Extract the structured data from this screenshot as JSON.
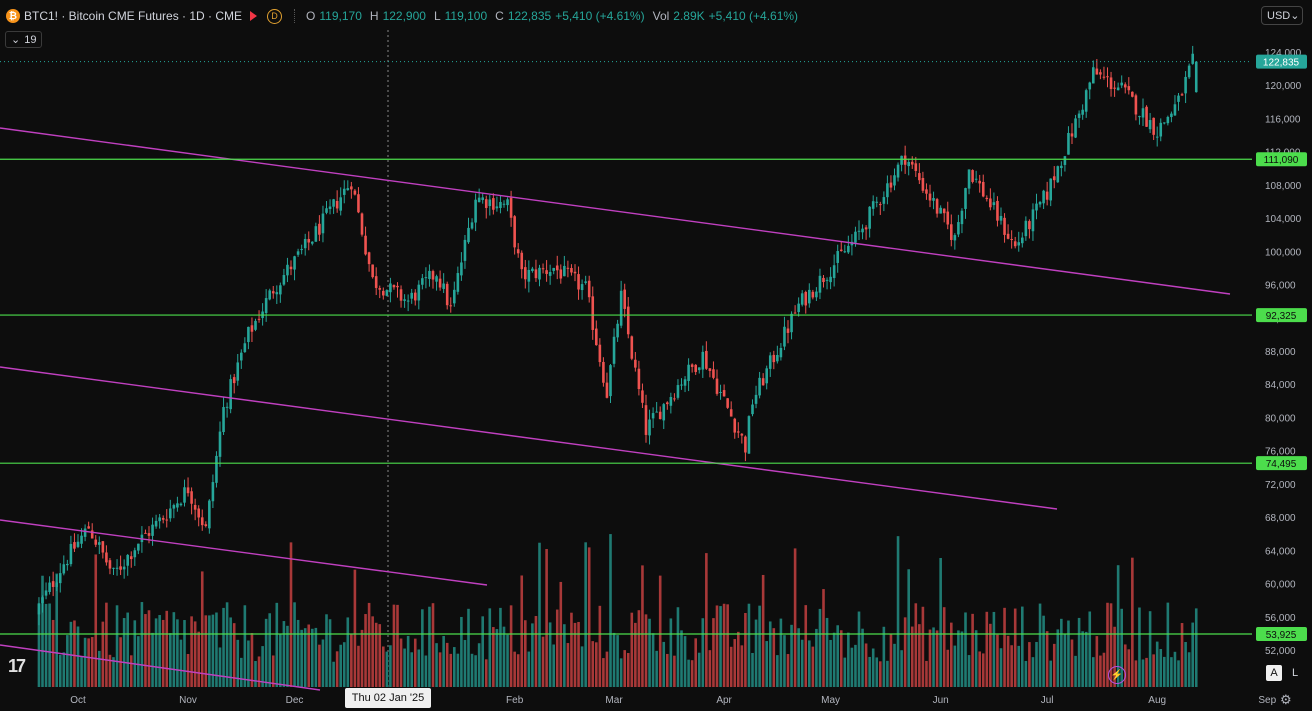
{
  "header": {
    "coin_glyph": "₿",
    "symbol": "BTC1! · Bitcoin CME Futures · 1D · CME",
    "d_badge": "D",
    "o_label": "O",
    "o_value": "119,170",
    "h_label": "H",
    "h_value": "122,900",
    "l_label": "L",
    "l_value": "119,100",
    "c_label": "C",
    "c_value": "122,835",
    "change": "+5,410 (+4.61%)",
    "vol_label": "Vol",
    "vol_value": "2.89K",
    "vol_change": "+5,410 (+4.61%)"
  },
  "indicator_toggle": {
    "chevron": "⌄",
    "count": "19"
  },
  "currency": {
    "label": "USD",
    "chevron": "⌄"
  },
  "crosshair_date": "Thu 02 Jan '25",
  "buttons": {
    "auto": "A",
    "log": "L"
  },
  "tv_logo": "17",
  "bolt_glyph": "⚡",
  "gear_glyph": "⚙",
  "colors": {
    "background": "#0d0d0d",
    "up": "#26a69a",
    "down": "#ef5350",
    "up_volume": "#1f7a72",
    "down_volume": "#a83838",
    "support_line": "#4cdd4c",
    "channel_line": "#c040c0",
    "label_text": "#0d0d0d",
    "axis_text": "#b2b5be"
  },
  "chart_data": {
    "type": "candlestick",
    "xlabels": [
      "Oct",
      "Nov",
      "Dec",
      "Feb",
      "Mar",
      "Apr",
      "May",
      "Jun",
      "Jul",
      "Aug",
      "Sep"
    ],
    "y_ticks": [
      52000,
      56000,
      60000,
      64000,
      68000,
      72000,
      76000,
      80000,
      84000,
      88000,
      92000,
      96000,
      100000,
      104000,
      108000,
      112000,
      116000,
      120000,
      124000
    ],
    "y_tick_labels": [
      "52,000",
      "56,000",
      "60,000",
      "64,000",
      "68,000",
      "72,000",
      "76,000",
      "80,000",
      "84,000",
      "88,000",
      "92,000",
      "96,000",
      "100,000",
      "104,000",
      "108,000",
      "112,000",
      "116,000",
      "120,000",
      "124,000"
    ],
    "ylim": [
      50000,
      126000
    ],
    "horizontal_levels": [
      {
        "value": 111090,
        "label": "111,090"
      },
      {
        "value": 92325,
        "label": "92,325"
      },
      {
        "value": 74495,
        "label": "74,495"
      },
      {
        "value": 53925,
        "label": "53,925"
      }
    ],
    "last_price": {
      "value": 122835,
      "label": "122,835"
    },
    "closes": [
      {
        "d": "2024-09-20",
        "c": 57200
      },
      {
        "d": "2024-09-27",
        "c": 62500
      },
      {
        "d": "2024-10-04",
        "c": 66800
      },
      {
        "d": "2024-10-11",
        "c": 61000
      },
      {
        "d": "2024-10-18",
        "c": 65000
      },
      {
        "d": "2024-10-25",
        "c": 68000
      },
      {
        "d": "2024-11-01",
        "c": 71500
      },
      {
        "d": "2024-11-06",
        "c": 66500
      },
      {
        "d": "2024-11-11",
        "c": 81000
      },
      {
        "d": "2024-11-18",
        "c": 90000
      },
      {
        "d": "2024-11-25",
        "c": 95500
      },
      {
        "d": "2024-12-05",
        "c": 101000
      },
      {
        "d": "2024-12-17",
        "c": 108500
      },
      {
        "d": "2024-12-23",
        "c": 96500
      },
      {
        "d": "2025-01-02",
        "c": 94000
      },
      {
        "d": "2025-01-10",
        "c": 97500
      },
      {
        "d": "2025-01-14",
        "c": 93000
      },
      {
        "d": "2025-01-21",
        "c": 106500
      },
      {
        "d": "2025-01-30",
        "c": 105500
      },
      {
        "d": "2025-02-03",
        "c": 97000
      },
      {
        "d": "2025-02-12",
        "c": 98000
      },
      {
        "d": "2025-02-21",
        "c": 95500
      },
      {
        "d": "2025-02-27",
        "c": 83000
      },
      {
        "d": "2025-03-03",
        "c": 94500
      },
      {
        "d": "2025-03-10",
        "c": 78500
      },
      {
        "d": "2025-03-20",
        "c": 84500
      },
      {
        "d": "2025-03-26",
        "c": 87500
      },
      {
        "d": "2025-04-07",
        "c": 76500
      },
      {
        "d": "2025-04-09",
        "c": 82000
      },
      {
        "d": "2025-04-22",
        "c": 93500
      },
      {
        "d": "2025-05-08",
        "c": 101500
      },
      {
        "d": "2025-05-22",
        "c": 111500
      },
      {
        "d": "2025-06-05",
        "c": 101500
      },
      {
        "d": "2025-06-09",
        "c": 110000
      },
      {
        "d": "2025-06-22",
        "c": 100500
      },
      {
        "d": "2025-07-01",
        "c": 107000
      },
      {
        "d": "2025-07-10",
        "c": 116500
      },
      {
        "d": "2025-07-14",
        "c": 121500
      },
      {
        "d": "2025-07-22",
        "c": 119500
      },
      {
        "d": "2025-08-01",
        "c": 114500
      },
      {
        "d": "2025-08-07",
        "c": 118000
      },
      {
        "d": "2025-08-11",
        "c": 122835
      }
    ]
  }
}
